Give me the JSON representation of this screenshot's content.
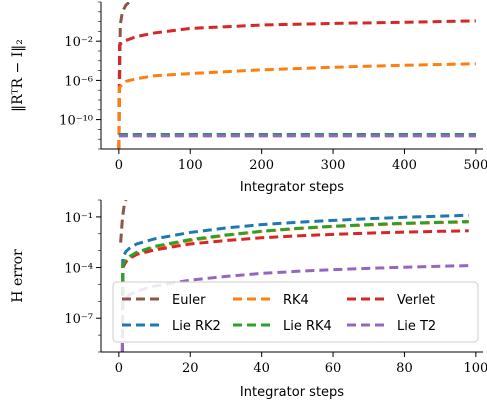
{
  "chart_data": [
    {
      "type": "line",
      "xlabel": "Integrator steps",
      "ylabel": "‖RᵀR − I‖₂",
      "yscale": "log",
      "xlim": [
        -25,
        510
      ],
      "ylim": [
        1e-13,
        100
      ],
      "x_ticks": [
        0,
        100,
        200,
        300,
        400,
        500
      ],
      "y_ticks": [
        {
          "value": 0.01,
          "label": "10⁻²"
        },
        {
          "value": 1e-06,
          "label": "10⁻⁶"
        },
        {
          "value": 1e-10,
          "label": "10⁻¹⁰"
        }
      ],
      "grid": false,
      "series": [
        {
          "name": "Euler",
          "color": "#8c564b",
          "x": [
            0,
            2,
            5,
            10,
            15
          ],
          "y": [
            1e-13,
            0.5,
            10,
            50,
            100
          ]
        },
        {
          "name": "Verlet",
          "color": "#d62728",
          "x": [
            0,
            1,
            5,
            10,
            25,
            50,
            100,
            200,
            300,
            400,
            500
          ],
          "y": [
            1e-13,
            0.004,
            0.008,
            0.012,
            0.03,
            0.07,
            0.2,
            0.45,
            0.65,
            0.85,
            1.2
          ]
        },
        {
          "name": "RK4",
          "color": "#ff7f0e",
          "x": [
            0,
            1,
            5,
            10,
            25,
            50,
            100,
            200,
            300,
            400,
            500
          ],
          "y": [
            1e-13,
            2e-07,
            4e-07,
            8e-07,
            1.5e-06,
            3e-06,
            5e-06,
            1.2e-05,
            2.2e-05,
            3.5e-05,
            5e-05
          ]
        },
        {
          "name": "Lie RK2",
          "color": "#1f77b4",
          "x": [
            0,
            500
          ],
          "y": [
            3e-12,
            3e-12
          ]
        },
        {
          "name": "Lie RK4",
          "color": "#2ca02c",
          "x": [
            0,
            500
          ],
          "y": [
            2.6e-12,
            2.6e-12
          ]
        },
        {
          "name": "Lie T2",
          "color": "#9467bd",
          "x": [
            0,
            500
          ],
          "y": [
            2.2e-12,
            2.2e-12
          ]
        }
      ]
    },
    {
      "type": "line",
      "xlabel": "Integrator steps",
      "ylabel": "H error",
      "yscale": "log",
      "xlim": [
        -5,
        102
      ],
      "ylim": [
        1e-09,
        1
      ],
      "x_ticks": [
        0,
        20,
        40,
        60,
        80,
        100
      ],
      "y_ticks": [
        {
          "value": 0.1,
          "label": "10⁻¹"
        },
        {
          "value": 0.0001,
          "label": "10⁻⁴"
        },
        {
          "value": 1e-07,
          "label": "10⁻⁷"
        }
      ],
      "grid": false,
      "legend": {
        "position": "lower-center",
        "columns": 3
      },
      "series": [
        {
          "name": "Euler",
          "color": "#8c564b",
          "x": [
            0.5,
            1,
            1.5,
            2
          ],
          "y": [
            0.003,
            0.08,
            0.5,
            1
          ]
        },
        {
          "name": "RK4",
          "color": "#ff7f0e",
          "x": [
            1,
            1.1,
            2,
            3,
            5,
            10,
            20,
            30,
            40,
            50,
            60,
            70,
            80,
            90,
            98
          ],
          "y": [
            1e-09,
            0.00012,
            0.00025,
            0.0004,
            0.0007,
            0.0015,
            0.004,
            0.008,
            0.014,
            0.02,
            0.027,
            0.033,
            0.04,
            0.046,
            0.05
          ]
        },
        {
          "name": "Verlet",
          "color": "#d62728",
          "x": [
            1,
            1.1,
            2,
            3,
            5,
            10,
            20,
            30,
            40,
            50,
            60,
            70,
            80,
            90,
            98
          ],
          "y": [
            1e-09,
            0.0001,
            0.00022,
            0.00035,
            0.0006,
            0.0011,
            0.0025,
            0.004,
            0.0058,
            0.0075,
            0.0092,
            0.011,
            0.0125,
            0.014,
            0.015
          ]
        },
        {
          "name": "Lie RK2",
          "color": "#1f77b4",
          "x": [
            1,
            1.1,
            2,
            3,
            5,
            10,
            20,
            30,
            40,
            50,
            60,
            70,
            80,
            90,
            98
          ],
          "y": [
            1e-09,
            0.0004,
            0.0009,
            0.0014,
            0.0025,
            0.005,
            0.012,
            0.022,
            0.035,
            0.048,
            0.062,
            0.078,
            0.095,
            0.11,
            0.125
          ]
        },
        {
          "name": "Lie RK4",
          "color": "#2ca02c",
          "x": [
            1,
            1.1,
            2,
            3,
            5,
            10,
            20,
            30,
            40,
            50,
            60,
            70,
            80,
            90,
            98
          ],
          "y": [
            1e-09,
            0.00015,
            0.0003,
            0.00045,
            0.0008,
            0.0018,
            0.0045,
            0.0085,
            0.014,
            0.021,
            0.028,
            0.035,
            0.042,
            0.048,
            0.053
          ]
        },
        {
          "name": "Lie T2",
          "color": "#9467bd",
          "x": [
            1,
            1.1,
            2,
            3,
            5,
            10,
            20,
            30,
            40,
            50,
            60,
            70,
            80,
            90,
            98
          ],
          "y": [
            1e-09,
            8e-07,
            1.5e-06,
            2.5e-06,
            4e-06,
            8e-06,
            1.8e-05,
            3e-05,
            4.5e-05,
            6e-05,
            7.5e-05,
            9e-05,
            0.000105,
            0.00012,
            0.00013
          ]
        }
      ]
    }
  ]
}
